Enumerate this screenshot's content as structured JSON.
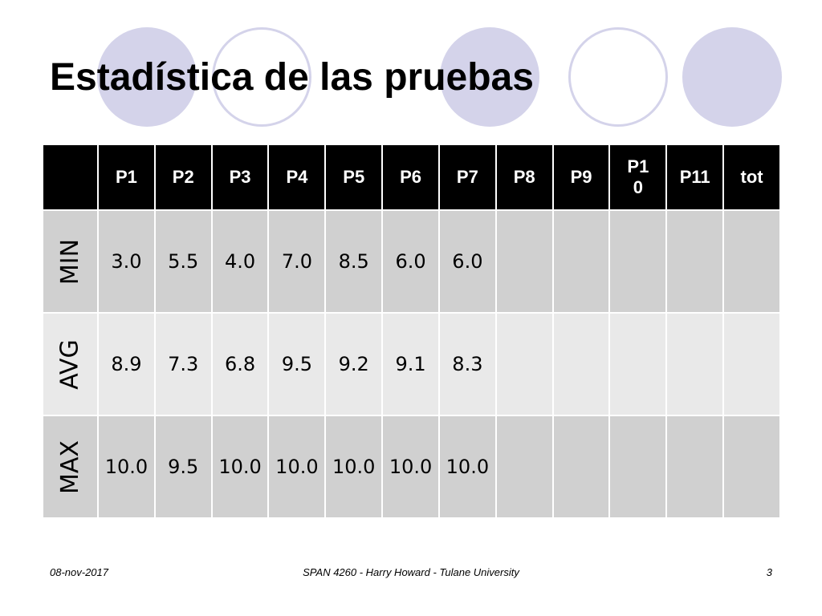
{
  "title": "Estadística de las pruebas",
  "decor": {
    "circle_color": "#d4d3ea"
  },
  "table": {
    "headers": [
      "",
      "P1",
      "P2",
      "P3",
      "P4",
      "P5",
      "P6",
      "P7",
      "P8",
      "P9",
      "P1\n0",
      "P11",
      "tot"
    ],
    "rows": [
      {
        "label": "MIN",
        "values": [
          "3.0",
          "5.5",
          "4.0",
          "7.0",
          "8.5",
          "6.0",
          "6.0",
          "",
          "",
          "",
          "",
          ""
        ]
      },
      {
        "label": "AVG",
        "values": [
          "8.9",
          "7.3",
          "6.8",
          "9.5",
          "9.2",
          "9.1",
          "8.3",
          "",
          "",
          "",
          "",
          ""
        ]
      },
      {
        "label": "MAX",
        "values": [
          "10.0",
          "9.5",
          "10.0",
          "10.0",
          "10.0",
          "10.0",
          "10.0",
          "",
          "",
          "",
          "",
          ""
        ]
      }
    ]
  },
  "footer": {
    "date": "08-nov-2017",
    "center": "SPAN 4260 - Harry Howard - Tulane University",
    "page": "3"
  }
}
